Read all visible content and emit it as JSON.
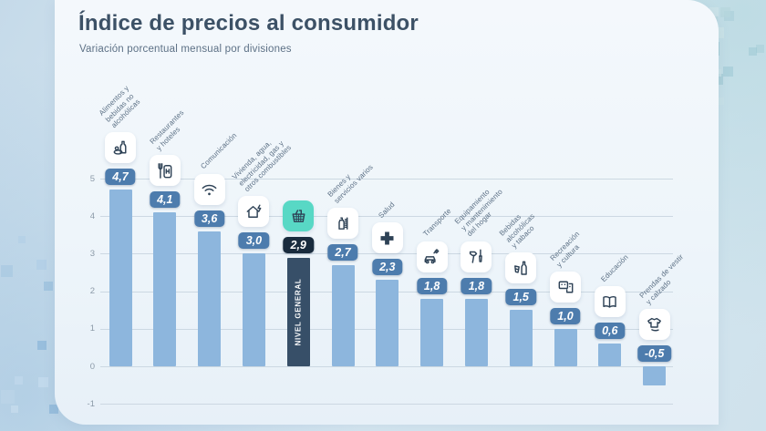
{
  "header": {
    "title": "Índice de precios al consumidor",
    "subtitle": "Variación porcentual mensual por divisiones"
  },
  "chart_data": {
    "type": "bar",
    "title": "Índice de precios al consumidor",
    "subtitle": "Variación porcentual mensual por divisiones",
    "xlabel": "",
    "ylabel": "",
    "ylim": [
      -1,
      5
    ],
    "yticks": [
      5,
      4,
      3,
      2,
      1,
      0,
      -1
    ],
    "grid": true,
    "legend": "none",
    "categories": [
      "Alimentos y\nbebidas no\nalcohólicas",
      "Restaurantes\ny hoteles",
      "Comunicación",
      "Vivienda, agua,\nelectricidad, gas y\notros combustibles",
      "Nivel general",
      "Bienes y\nservicios varios",
      "Salud",
      "Transporte",
      "Equipamiento\ny mantenimiento\ndel hogar",
      "Bebidas\nalcohólicas\ny tabaco",
      "Recreación\ny cultura",
      "Educación",
      "Prendas de vestir\ny calzado"
    ],
    "values": [
      4.7,
      4.1,
      3.6,
      3.0,
      2.9,
      2.7,
      2.3,
      1.8,
      1.8,
      1.5,
      1.0,
      0.6,
      -0.5
    ],
    "value_labels": [
      "4,7",
      "4,1",
      "3,6",
      "3,0",
      "2,9",
      "2,7",
      "2,3",
      "1,8",
      "1,8",
      "1,5",
      "1,0",
      "0,6",
      "-0,5"
    ],
    "highlight_index": 4,
    "highlight_bar_text": "NIVEL GENERAL",
    "icons": [
      "food-drinks-icon",
      "restaurant-hotel-icon",
      "communication-wifi-icon",
      "housing-utilities-icon",
      "shopping-basket-icon",
      "misc-goods-icon",
      "health-cross-icon",
      "transport-car-icon",
      "home-equipment-tools-icon",
      "alcohol-tobacco-icon",
      "recreation-culture-icon",
      "education-book-icon",
      "clothing-footwear-icon"
    ],
    "colors": {
      "bar": "#8db6dd",
      "bar_highlight": "#374f68",
      "pill": "#4d7cad",
      "pill_highlight": "#192b3d",
      "icon_card": "#ffffff",
      "icon_card_highlight": "#58d8c5",
      "icon_glyph": "#2e4256",
      "grid_line": "#ccd8e2",
      "tick_label": "#8c9aa8",
      "category_label": "#5d7186",
      "title": "#3c5166",
      "subtitle": "#5d7186"
    }
  }
}
